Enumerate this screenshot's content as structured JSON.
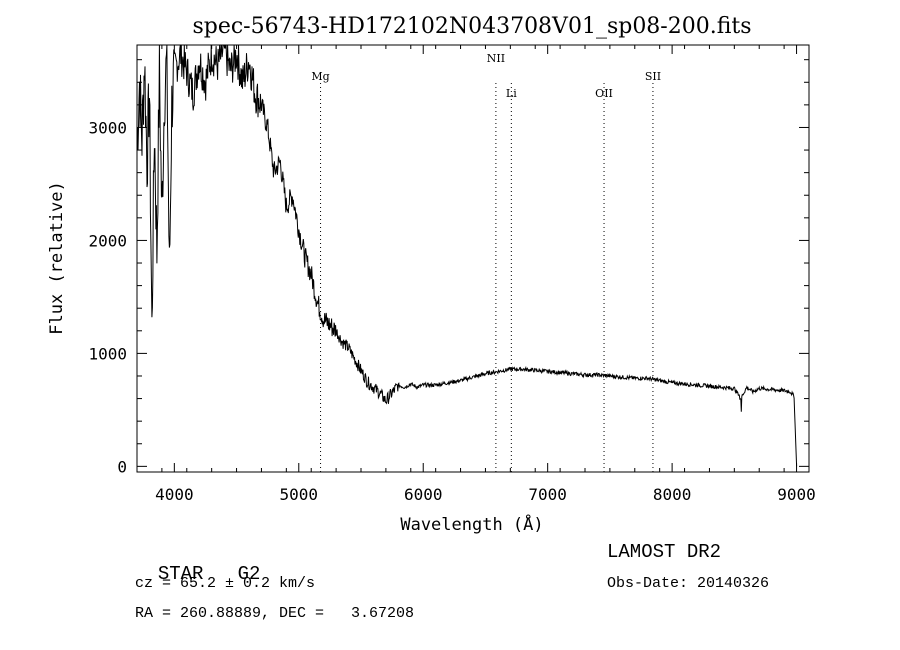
{
  "chart_data": {
    "type": "line",
    "title": "spec-56743-HD172102N043708V01_sp08-200.fits",
    "xlabel": "Wavelength (Å)",
    "ylabel": "Flux (relative)",
    "xlim": [
      3700,
      9100
    ],
    "ylim": [
      -50,
      3730
    ],
    "xticks": [
      4000,
      5000,
      6000,
      7000,
      8000,
      9000
    ],
    "yticks": [
      0,
      1000,
      2000,
      3000
    ],
    "grid": false,
    "line_color": "#000000",
    "lines": [
      {
        "label": "Mg",
        "x": 5175
      },
      {
        "label": "NII",
        "x": 6584
      },
      {
        "label": "Li",
        "x": 6708
      },
      {
        "label": "OII",
        "x": 7453
      },
      {
        "label": "SII",
        "x": 7846
      }
    ],
    "series": [
      {
        "x": [
          3700,
          3720,
          3740,
          3760,
          3780,
          3800,
          3820,
          3840,
          3860,
          3880,
          3900,
          3920,
          3940,
          3960,
          3980,
          4000,
          4050,
          4100,
          4150,
          4200,
          4250,
          4300,
          4350,
          4400,
          4450,
          4500,
          4550,
          4600,
          4650,
          4700,
          4750,
          4800,
          4850,
          4900,
          4950,
          5000,
          5050,
          5100,
          5150,
          5200,
          5250,
          5300,
          5350,
          5400,
          5450,
          5500,
          5550,
          5600,
          5650,
          5700,
          5750,
          5800,
          5850,
          5900,
          5950,
          6000,
          6100,
          6200,
          6300,
          6400,
          6500,
          6600,
          6700,
          6800,
          6900,
          7000,
          7100,
          7200,
          7300,
          7400,
          7500,
          7600,
          7700,
          7800,
          7900,
          8000,
          8100,
          8200,
          8300,
          8400,
          8500,
          8550,
          8600,
          8650,
          8700,
          8800,
          8900,
          8950,
          8980,
          8990,
          9000
        ],
        "y": [
          2850,
          3400,
          2900,
          3600,
          2700,
          3300,
          1200,
          3000,
          1900,
          3500,
          2200,
          3300,
          3600,
          1700,
          3200,
          3500,
          3650,
          3500,
          3300,
          3600,
          3400,
          3650,
          3550,
          3700,
          3500,
          3650,
          3400,
          3600,
          3300,
          3200,
          3000,
          2600,
          2700,
          2300,
          2400,
          2100,
          1850,
          1700,
          1450,
          1300,
          1250,
          1200,
          1100,
          1050,
          950,
          850,
          750,
          700,
          650,
          580,
          650,
          720,
          700,
          730,
          700,
          720,
          720,
          740,
          760,
          790,
          820,
          840,
          860,
          860,
          850,
          840,
          830,
          820,
          810,
          810,
          800,
          790,
          780,
          780,
          760,
          740,
          730,
          720,
          710,
          700,
          690,
          600,
          700,
          660,
          690,
          680,
          670,
          660,
          620,
          300,
          0
        ]
      }
    ]
  },
  "info": {
    "class_label": "STAR",
    "subclass": "G2",
    "survey": "LAMOST DR2",
    "cz": "cz = 65.2 ± 0.2 km/s",
    "obs_date": "Obs-Date: 20140326",
    "coords": "RA = 260.88889, DEC =   3.67208"
  }
}
